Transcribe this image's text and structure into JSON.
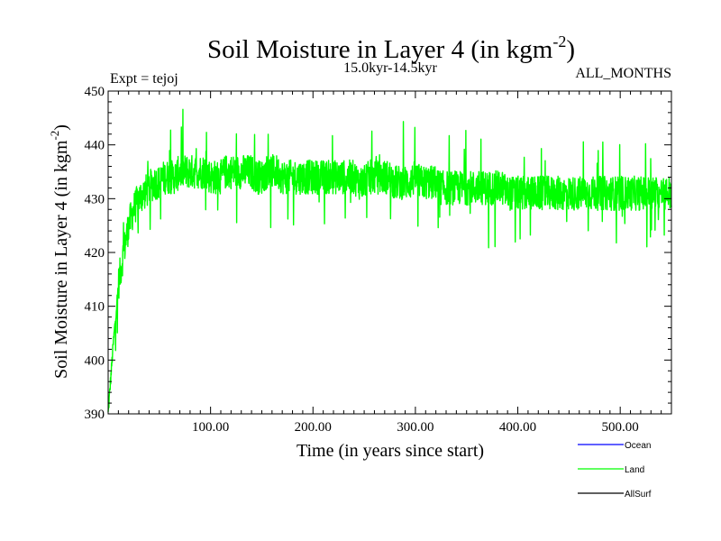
{
  "chart_data": {
    "type": "line",
    "title": "Soil Moisture in Layer 4 (in kgm",
    "title_sup": "-2",
    "title_close": ")",
    "subtitle": "15.0kyr-14.5kyr",
    "left_note": "Expt = tejoj",
    "right_note": "ALL_MONTHS",
    "xlabel": "Time (in years since start)",
    "ylabel": "Soil Moisture in Layer 4 (in kgm",
    "ylabel_sup": "-2",
    "ylabel_close": ")",
    "xlim": [
      0,
      550
    ],
    "ylim": [
      390,
      450
    ],
    "x_ticks": [
      100,
      200,
      300,
      400,
      500
    ],
    "x_tick_labels": [
      "100.00",
      "200.00",
      "300.00",
      "400.00",
      "500.00"
    ],
    "y_ticks": [
      390,
      400,
      410,
      420,
      430,
      440,
      450
    ],
    "y_tick_labels": [
      "390",
      "400",
      "410",
      "420",
      "430",
      "440",
      "450"
    ],
    "series": [
      {
        "name": "Ocean",
        "color": "#0000ff",
        "values": []
      },
      {
        "name": "Land",
        "color": "#00ff00",
        "x_start": 0,
        "x_step": 5,
        "values": [
          390,
          403,
          414,
          420,
          425,
          428,
          430,
          431,
          432,
          433,
          433,
          434,
          434,
          434,
          435,
          435,
          435,
          435,
          435,
          435,
          434,
          434,
          434,
          435,
          435,
          435,
          435,
          435,
          435,
          434,
          434,
          435,
          435,
          435,
          434,
          434,
          434,
          434,
          434,
          434,
          434,
          434,
          434,
          434,
          434,
          434,
          434,
          434,
          434,
          433,
          433,
          434,
          434,
          434,
          434,
          434,
          433,
          433,
          433,
          433,
          434,
          433,
          433,
          433,
          433,
          432,
          432,
          432,
          432,
          432,
          432,
          432,
          432,
          432,
          432,
          432,
          432,
          432,
          431,
          431,
          431,
          431,
          431,
          431,
          431,
          431,
          431,
          431,
          431,
          431,
          431,
          431,
          431,
          431,
          431,
          431,
          431,
          431,
          431,
          431,
          431,
          431,
          431,
          431,
          431,
          431,
          431,
          431,
          431,
          431,
          431
        ]
      },
      {
        "name": "AllSurf",
        "color": "#000000",
        "values": []
      }
    ]
  }
}
